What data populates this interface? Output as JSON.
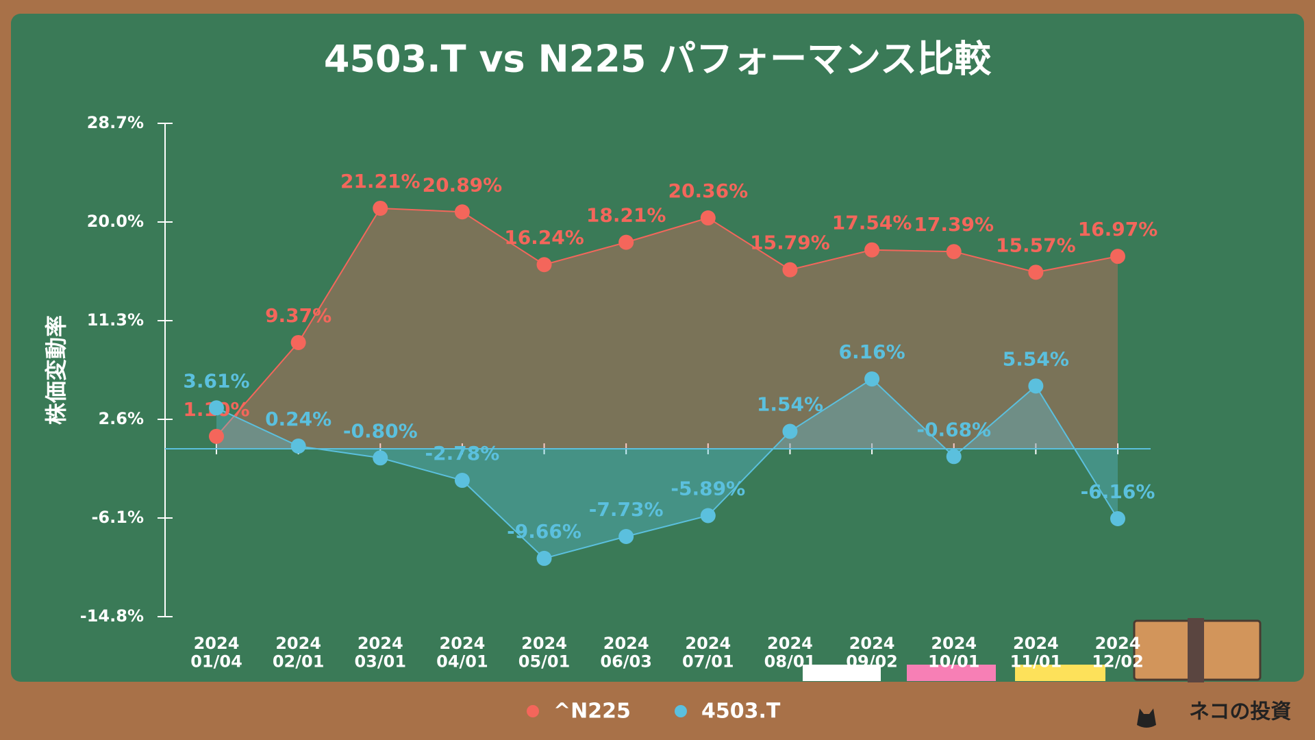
{
  "chart_data": {
    "type": "line",
    "title": "4503.T vs N225 パフォーマンス比較",
    "y_label": "株価変動率",
    "categories": [
      "2024\n01/04",
      "2024\n02/01",
      "2024\n03/01",
      "2024\n04/01",
      "2024\n05/01",
      "2024\n06/03",
      "2024\n07/01",
      "2024\n08/01",
      "2024\n09/02",
      "2024\n10/01",
      "2024\n11/01",
      "2024\n12/02"
    ],
    "series": [
      {
        "name": "^N225",
        "color": "#f4665b",
        "values": [
          1.1,
          9.37,
          21.21,
          20.89,
          16.24,
          18.21,
          20.36,
          15.79,
          17.54,
          17.39,
          15.57,
          16.97
        ],
        "value_labels": [
          "1.10%",
          "9.37%",
          "21.21%",
          "20.89%",
          "16.24%",
          "18.21%",
          "20.36%",
          "15.79%",
          "17.54%",
          "17.39%",
          "15.57%",
          "16.97%"
        ]
      },
      {
        "name": "4503.T",
        "color": "#5bc0de",
        "values": [
          3.61,
          0.24,
          -0.8,
          -2.78,
          -9.66,
          -7.73,
          -5.89,
          1.54,
          6.16,
          -0.68,
          5.54,
          -6.16
        ],
        "value_labels": [
          "3.61%",
          "0.24%",
          "-0.80%",
          "-2.78%",
          "-9.66%",
          "-7.73%",
          "-5.89%",
          "1.54%",
          "6.16%",
          "-0.68%",
          "5.54%",
          "-6.16%"
        ]
      }
    ],
    "ylim": [
      -14.8,
      28.7
    ],
    "yticks": [
      {
        "value": -14.8,
        "label": "-14.8%"
      },
      {
        "value": -6.1,
        "label": "-6.1%"
      },
      {
        "value": 2.6,
        "label": "2.6%"
      },
      {
        "value": 11.3,
        "label": "11.3%"
      },
      {
        "value": 20.0,
        "label": "20.0%"
      },
      {
        "value": 28.7,
        "label": "28.7%"
      }
    ],
    "legend": "bottom",
    "brand": "ネコの投資"
  }
}
